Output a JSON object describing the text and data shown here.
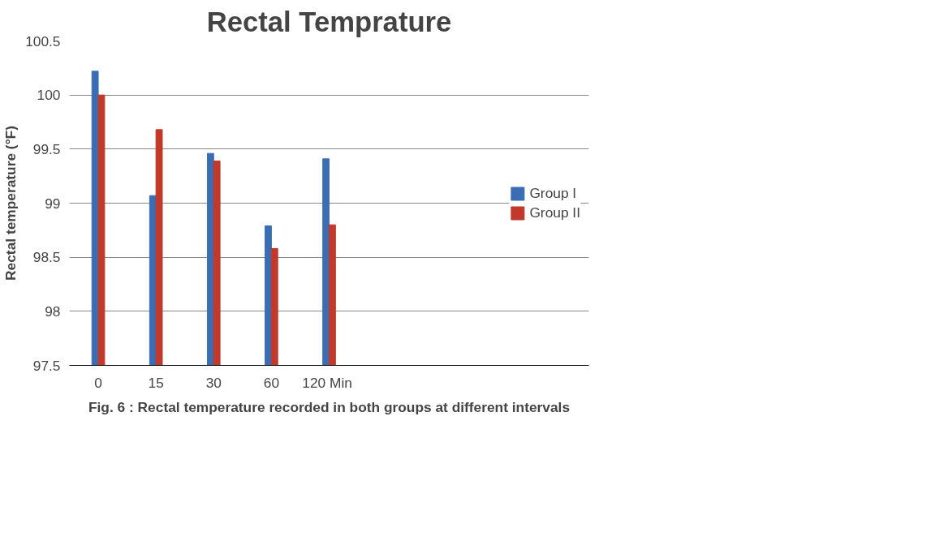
{
  "chart_data": {
    "type": "bar",
    "title": "Rectal Temprature",
    "ylabel": "Rectal temperature (°F)",
    "categories": [
      "0",
      "15",
      "30",
      "60",
      "120  Min",
      null,
      null,
      null,
      null
    ],
    "series": [
      {
        "name": "Group I",
        "color": "#3b6db3",
        "values": [
          100.22,
          99.07,
          99.46,
          98.79,
          99.41,
          null,
          null,
          null,
          null
        ]
      },
      {
        "name": "Group II",
        "color": "#c0392b",
        "values": [
          100.0,
          99.68,
          99.39,
          98.58,
          98.8,
          null,
          null,
          null,
          null
        ]
      }
    ],
    "ylim": [
      97.5,
      100.5
    ],
    "yticks": [
      97.5,
      98,
      98.5,
      99,
      99.5,
      100,
      100.5
    ],
    "grid": "y",
    "legend": "right",
    "annotations": [
      "Fig. 6 : Rectal temperature recorded in both groups at different intervals"
    ]
  }
}
